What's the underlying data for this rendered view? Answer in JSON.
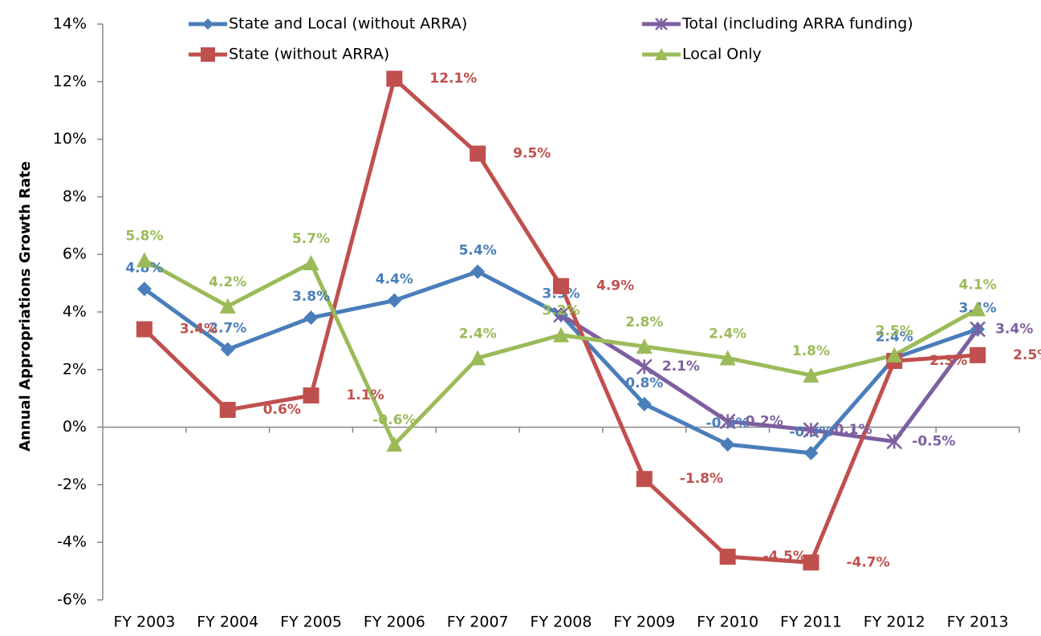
{
  "chart_data": {
    "type": "line",
    "y_label": "Annual Appropriations Growth Rate",
    "categories": [
      "FY 2003",
      "FY 2004",
      "FY 2005",
      "FY 2006",
      "FY 2007",
      "FY 2008",
      "FY 2009",
      "FY 2010",
      "FY 2011",
      "FY 2012",
      "FY 2013"
    ],
    "series": [
      {
        "name": "State and Local (without ARRA)",
        "color": "#4a7ebb",
        "marker": "diamond",
        "values": [
          4.8,
          2.7,
          3.8,
          4.4,
          5.4,
          3.9,
          0.8,
          -0.6,
          -0.9,
          2.4,
          3.4
        ],
        "value_labels": [
          "4.8%",
          "2.7%",
          "3.8%",
          "4.4%",
          "5.4%",
          "3.9%",
          "0.8%",
          "-0.6%",
          "-0.9%",
          "2.4%",
          "3.4%"
        ]
      },
      {
        "name": "Total (including ARRA funding)",
        "color": "#7d5fa0",
        "marker": "star",
        "values": [
          null,
          null,
          null,
          null,
          null,
          3.9,
          2.1,
          0.2,
          -0.1,
          -0.5,
          3.4
        ],
        "value_labels": [
          null,
          null,
          null,
          null,
          null,
          null,
          "2.1%",
          "0.2%",
          "-0.1%",
          "-0.5%",
          "3.4%"
        ]
      },
      {
        "name": "State (without ARRA)",
        "color": "#c0504d",
        "marker": "square",
        "values": [
          3.4,
          0.6,
          1.1,
          12.1,
          9.5,
          4.9,
          -1.8,
          -4.5,
          -4.7,
          2.3,
          2.5
        ],
        "value_labels": [
          "3.4%",
          "0.6%",
          "1.1%",
          "12.1%",
          "9.5%",
          "4.9%",
          "-1.8%",
          "-4.5%",
          "-4.7%",
          "2.3%",
          "2.5%"
        ]
      },
      {
        "name": "Local Only",
        "color": "#9bbb59",
        "marker": "triangle",
        "values": [
          5.8,
          4.2,
          5.7,
          -0.6,
          2.4,
          3.2,
          2.8,
          2.4,
          1.8,
          2.5,
          4.1
        ],
        "value_labels": [
          "5.8%",
          "4.2%",
          "5.7%",
          "-0.6%",
          "2.4%",
          "3.2%",
          "2.8%",
          "2.4%",
          "1.8%",
          "2.5%",
          "4.1%"
        ]
      }
    ],
    "ylim": [
      -6,
      14
    ],
    "yticks": [
      {
        "value": -6,
        "label": "-6%"
      },
      {
        "value": -4,
        "label": "-4%"
      },
      {
        "value": -2,
        "label": "-2%"
      },
      {
        "value": 0,
        "label": "0%"
      },
      {
        "value": 2,
        "label": "2%"
      },
      {
        "value": 4,
        "label": "4%"
      },
      {
        "value": 6,
        "label": "6%"
      },
      {
        "value": 8,
        "label": "8%"
      },
      {
        "value": 10,
        "label": "10%"
      },
      {
        "value": 12,
        "label": "12%"
      },
      {
        "value": 14,
        "label": "14%"
      }
    ],
    "legend": "top",
    "grid": false
  }
}
